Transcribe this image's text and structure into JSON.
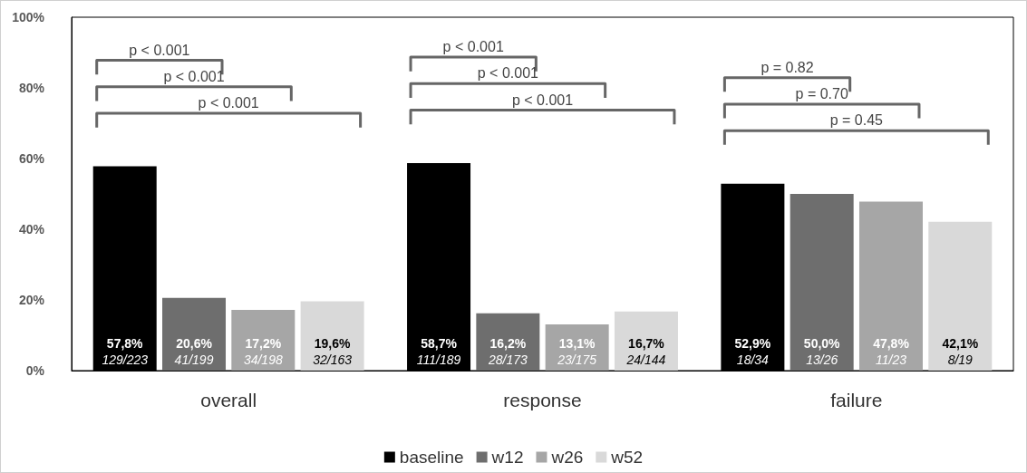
{
  "chart_data": {
    "type": "bar",
    "categories": [
      "overall",
      "response",
      "failure"
    ],
    "series": [
      {
        "name": "baseline",
        "color": "#000000",
        "values": [
          57.8,
          58.7,
          52.9
        ],
        "value_labels": [
          "57,8%\n129/223",
          "58,7%\n111/189",
          "52,9%\n18/34"
        ]
      },
      {
        "name": "w12",
        "color": "#6e6e6e",
        "values": [
          20.6,
          16.2,
          50.0
        ],
        "value_labels": [
          "20,6%\n41/199",
          "16,2%\n28/173",
          "50,0%\n13/26"
        ]
      },
      {
        "name": "w26",
        "color": "#a6a6a6",
        "values": [
          17.2,
          13.1,
          47.8
        ],
        "value_labels": [
          "17,2%\n34/198",
          "13,1%\n23/175",
          "47,8%\n11/23"
        ]
      },
      {
        "name": "w52",
        "color": "#d9d9d9",
        "values": [
          19.6,
          16.7,
          42.1
        ],
        "value_labels": [
          "19,6%\n32/163",
          "16,7%\n24/144",
          "42,1%\n8/19"
        ]
      }
    ],
    "ylim": [
      0,
      100
    ],
    "yticks": [
      {
        "value": 0,
        "label": "0%"
      },
      {
        "value": 20,
        "label": "20%"
      },
      {
        "value": 40,
        "label": "40%"
      },
      {
        "value": 60,
        "label": "60%"
      },
      {
        "value": 80,
        "label": "80%"
      },
      {
        "value": 100,
        "label": "100%"
      }
    ],
    "grid": false,
    "legend": "bottom",
    "annotations": [
      "p < 0.001",
      "p < 0.001",
      "p < 0.001",
      "p < 0.001",
      "p < 0.001",
      "p < 0.001",
      "p = 0.82",
      "p = 0.70",
      "p = 0.45"
    ]
  }
}
